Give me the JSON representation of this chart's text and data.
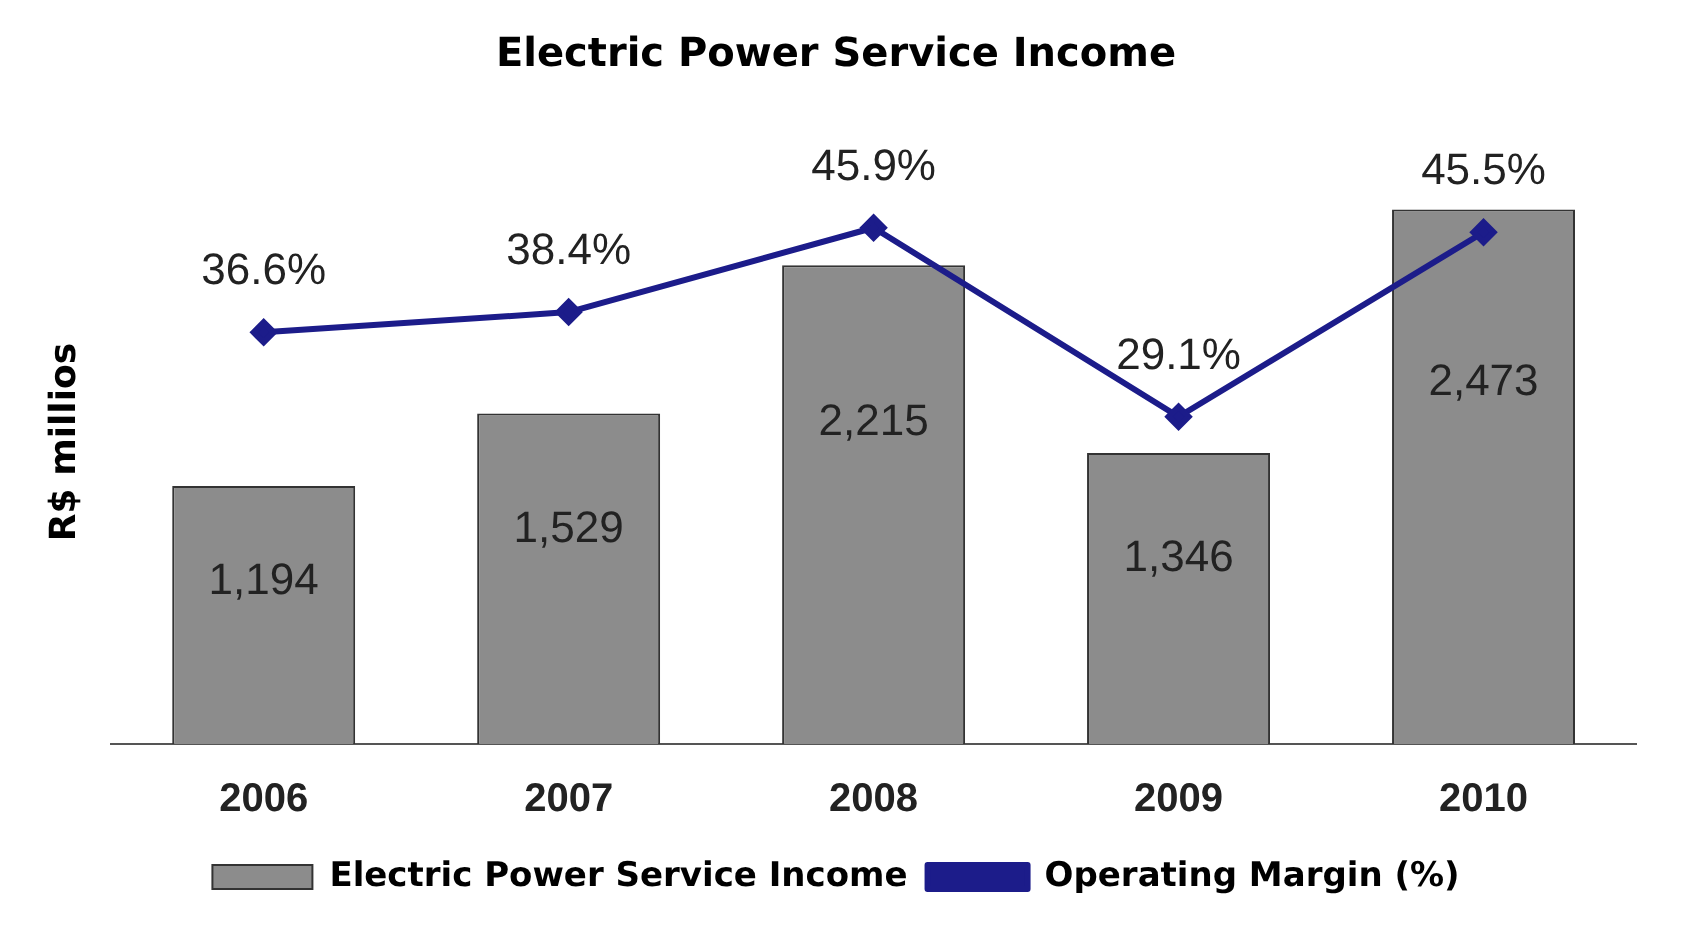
{
  "chart_data": {
    "type": "bar",
    "title": "Electric Power Service Income",
    "ylabel": "R$ millios",
    "categories": [
      "2006",
      "2007",
      "2008",
      "2009",
      "2010"
    ],
    "series": [
      {
        "name": "Electric Power Service Income",
        "color": "#8c8c8c",
        "values": [
          1194,
          1529,
          2215,
          1346,
          2473
        ],
        "value_labels": [
          "1,194",
          "1,529",
          "2,215",
          "1,346",
          "2,473"
        ]
      },
      {
        "name": "Operating Margin (%)",
        "type": "line",
        "axis": "y2",
        "color": "#1c1c8a",
        "values": [
          36.6,
          38.4,
          45.9,
          29.1,
          45.5
        ],
        "value_labels": [
          "36.6%",
          "38.4%",
          "45.9%",
          "29.1%",
          "45.5%"
        ],
        "marker": "diamond",
        "line_style": "solid"
      }
    ],
    "grid": false,
    "legend": "bottom",
    "tick_labels": "x"
  }
}
